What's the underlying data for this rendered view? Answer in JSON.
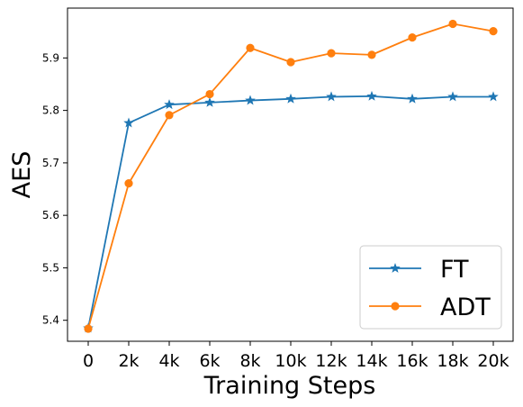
{
  "chart_data": {
    "type": "line",
    "xlabel": "Training Steps",
    "ylabel": "AES",
    "categories": [
      "0",
      "2k",
      "4k",
      "6k",
      "8k",
      "10k",
      "12k",
      "14k",
      "16k",
      "18k",
      "20k"
    ],
    "yticks": [
      "5.4",
      "5.5",
      "5.6",
      "5.7",
      "5.8",
      "5.9"
    ],
    "ylim": [
      5.36,
      5.995
    ],
    "grid": false,
    "legend_position": "bottom-right",
    "series": [
      {
        "name": "FT",
        "color": "#1f77b4",
        "marker": "star",
        "values": [
          5.385,
          5.776,
          5.811,
          5.815,
          5.819,
          5.822,
          5.826,
          5.827,
          5.822,
          5.826,
          5.826
        ]
      },
      {
        "name": "ADT",
        "color": "#ff7f0e",
        "marker": "circle",
        "values": [
          5.384,
          5.661,
          5.791,
          5.831,
          5.919,
          5.892,
          5.909,
          5.906,
          5.939,
          5.965,
          5.951
        ]
      }
    ]
  }
}
